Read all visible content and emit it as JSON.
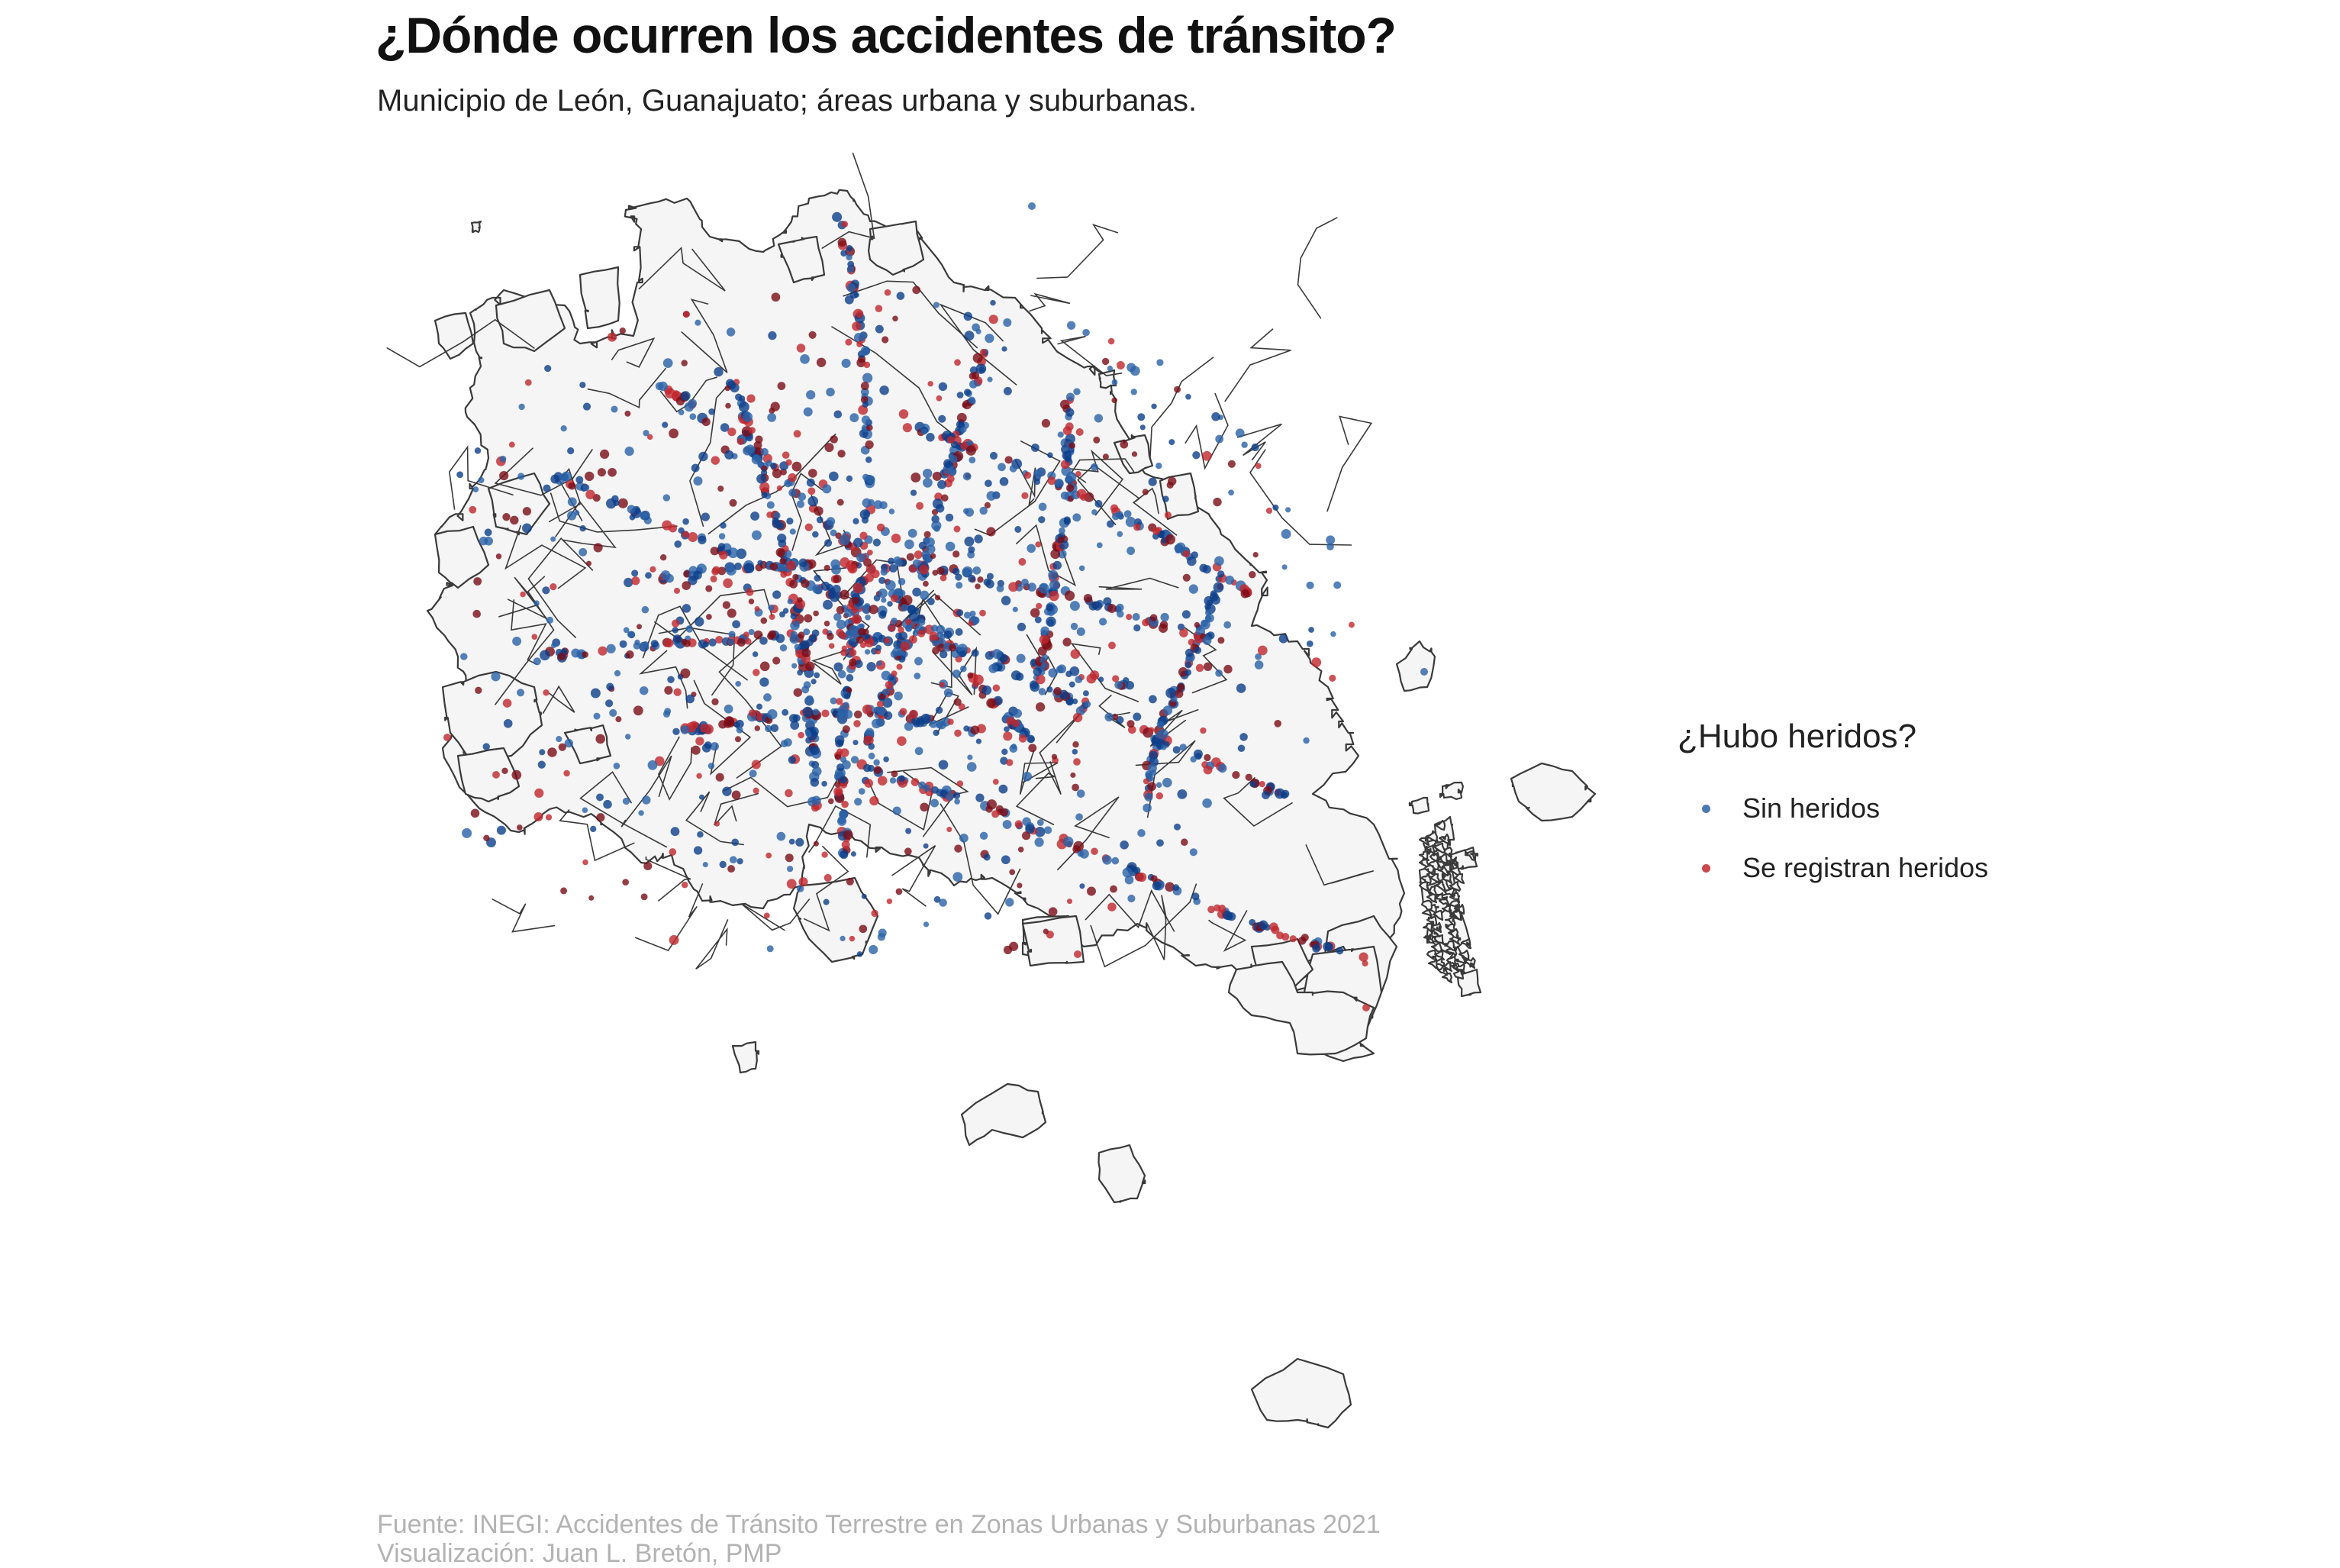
{
  "header": {
    "title": "¿Dónde ocurren los accidentes de tránsito?",
    "subtitle": "Municipio de León, Guanajuato; áreas urbana y suburbanas."
  },
  "legend": {
    "title": "¿Hubo heridos?",
    "items": [
      {
        "label": "Sin heridos",
        "color": "#2b62a7"
      },
      {
        "label": "Se registran heridos",
        "color": "#c1272d"
      }
    ]
  },
  "caption": {
    "source": "Fuente: INEGI: Accidentes de Tránsito Terrestre en Zonas Urbanas y Suburbanas 2021",
    "credit": "Visualización: Juan L. Bretón, PMP"
  },
  "map": {
    "region": "Municipio de León, Guanajuato",
    "fill_color": "#f5f5f5",
    "border_color": "#3a3a3a",
    "dark_blue": "#0d3f8a",
    "dark_red": "#7a0c16"
  }
}
